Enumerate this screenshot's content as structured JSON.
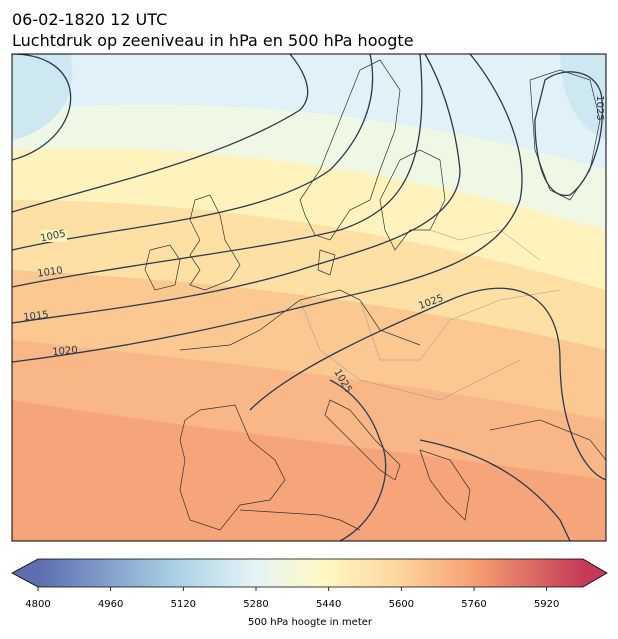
{
  "title": {
    "date": "06-02-1820 12 UTC",
    "subtitle": "Luchtdruk op zeeniveau in hPa en 500 hPa hoogte"
  },
  "map": {
    "contour_labels": [
      1005,
      1010,
      1015,
      1020,
      1025,
      1025,
      1025
    ]
  },
  "colorbar": {
    "label": "500 hPa hoogte in meter",
    "range": [
      4800,
      6000
    ],
    "ticks": [
      4800,
      4960,
      5120,
      5280,
      5440,
      5600,
      5760,
      5920
    ]
  }
}
